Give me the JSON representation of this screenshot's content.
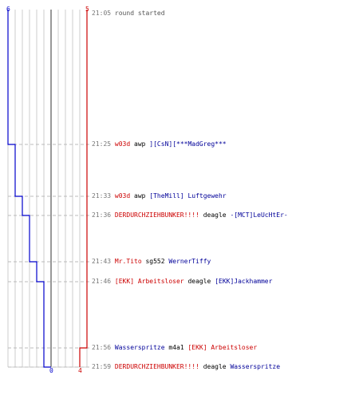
{
  "axis": {
    "top_left_label": "6",
    "top_right_label": "5",
    "bottom_left_label": "0",
    "bottom_right_label": "4"
  },
  "colors": {
    "blue_team": "#0000cc",
    "red_team": "#cc0000",
    "grid": "#cccccc",
    "center_line": "#555555",
    "dashed_rule": "#bbbbbb",
    "timestamp": "#777777"
  },
  "score_steps": {
    "blue_alive": [
      6,
      5,
      4,
      3,
      2,
      1,
      1,
      0
    ],
    "red_alive": [
      5,
      5,
      5,
      5,
      5,
      5,
      4,
      4
    ]
  },
  "events": [
    {
      "time": "21:05",
      "parts": [
        {
          "text": "round started",
          "team": "plain"
        }
      ]
    },
    {
      "time": "21:25",
      "parts": [
        {
          "text": "w03d",
          "team": "red"
        },
        {
          "text": "awp",
          "team": "weapon"
        },
        {
          "text": "][CsN][***MadGreg***",
          "team": "blue"
        }
      ]
    },
    {
      "time": "21:33",
      "parts": [
        {
          "text": "w03d",
          "team": "red"
        },
        {
          "text": "awp",
          "team": "weapon"
        },
        {
          "text": "[TheMill] Luftgewehr",
          "team": "blue"
        }
      ]
    },
    {
      "time": "21:36",
      "parts": [
        {
          "text": "DERDURCHZIEHBUNKER!!!!",
          "team": "red"
        },
        {
          "text": "deagle",
          "team": "weapon"
        },
        {
          "text": "-[MCT]LeUcHtEr-",
          "team": "blue"
        }
      ]
    },
    {
      "time": "21:43",
      "parts": [
        {
          "text": "Mr.Tito",
          "team": "red"
        },
        {
          "text": "sg552",
          "team": "weapon"
        },
        {
          "text": "WernerTiffy",
          "team": "blue"
        }
      ]
    },
    {
      "time": "21:46",
      "parts": [
        {
          "text": "[EKK] Arbeitsloser",
          "team": "red"
        },
        {
          "text": "deagle",
          "team": "weapon"
        },
        {
          "text": "[EKK]Jackhammer",
          "team": "blue"
        }
      ]
    },
    {
      "time": "21:56",
      "parts": [
        {
          "text": "Wasserspritze",
          "team": "blue"
        },
        {
          "text": "m4a1",
          "team": "weapon"
        },
        {
          "text": "[EKK] Arbeitsloser",
          "team": "red"
        }
      ]
    },
    {
      "time": "21:59",
      "parts": [
        {
          "text": "DERDURCHZIEHBUNKER!!!!",
          "team": "red"
        },
        {
          "text": "deagle",
          "team": "weapon"
        },
        {
          "text": "Wasserspritze",
          "team": "blue"
        }
      ]
    }
  ]
}
